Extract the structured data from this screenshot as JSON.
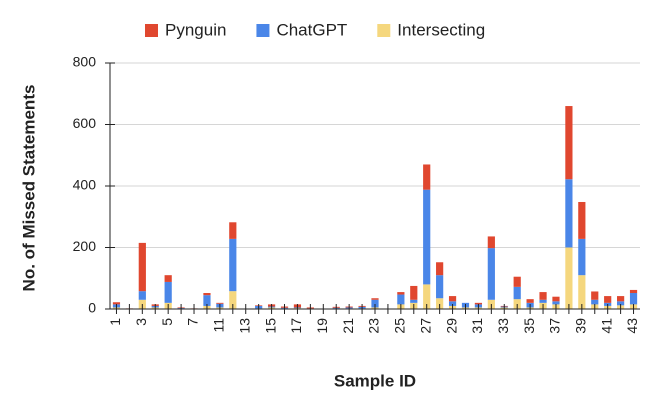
{
  "chart_data": {
    "type": "stacked_bar",
    "x_label": "Sample ID",
    "y_label": "No. of Missed Statements",
    "categories": [
      "1",
      null,
      "3",
      null,
      "5",
      null,
      "7",
      null,
      "11",
      null,
      "13",
      null,
      "15",
      null,
      "17",
      null,
      "19",
      null,
      "21",
      null,
      "23",
      null,
      "25",
      null,
      "27",
      null,
      "29",
      null,
      "31",
      null,
      "33",
      null,
      "35",
      null,
      "37",
      null,
      "39",
      null,
      "41",
      null,
      "43"
    ],
    "series": [
      {
        "name": "Pynguin",
        "color": "#e0472f",
        "values": [
          7,
          2,
          157,
          5,
          22,
          2,
          2,
          7,
          3,
          54,
          0,
          2,
          7,
          4,
          10,
          3,
          0,
          3,
          3,
          3,
          5,
          0,
          8,
          45,
          82,
          42,
          17,
          0,
          5,
          38,
          2,
          33,
          12,
          25,
          15,
          238,
          120,
          27,
          22,
          17,
          10
        ]
      },
      {
        "name": "ChatGPT",
        "color": "#4a86e8",
        "values": [
          10,
          0,
          28,
          5,
          68,
          3,
          0,
          35,
          12,
          170,
          0,
          8,
          3,
          2,
          2,
          2,
          0,
          2,
          3,
          5,
          25,
          0,
          32,
          10,
          308,
          75,
          15,
          15,
          10,
          168,
          3,
          40,
          15,
          10,
          10,
          222,
          118,
          15,
          10,
          13,
          37
        ]
      },
      {
        "name": "Intersecting",
        "color": "#f5d77e",
        "values": [
          5,
          0,
          30,
          5,
          20,
          0,
          0,
          10,
          5,
          58,
          0,
          2,
          5,
          2,
          3,
          0,
          0,
          2,
          2,
          2,
          5,
          0,
          15,
          20,
          80,
          35,
          10,
          5,
          5,
          30,
          5,
          32,
          5,
          20,
          15,
          200,
          110,
          15,
          10,
          12,
          15
        ]
      }
    ],
    "stack_order": "bottom-up from last series",
    "ylim": [
      0,
      800
    ],
    "yticks": [
      0,
      200,
      400,
      600,
      800
    ],
    "grid": true,
    "legend": "top"
  }
}
